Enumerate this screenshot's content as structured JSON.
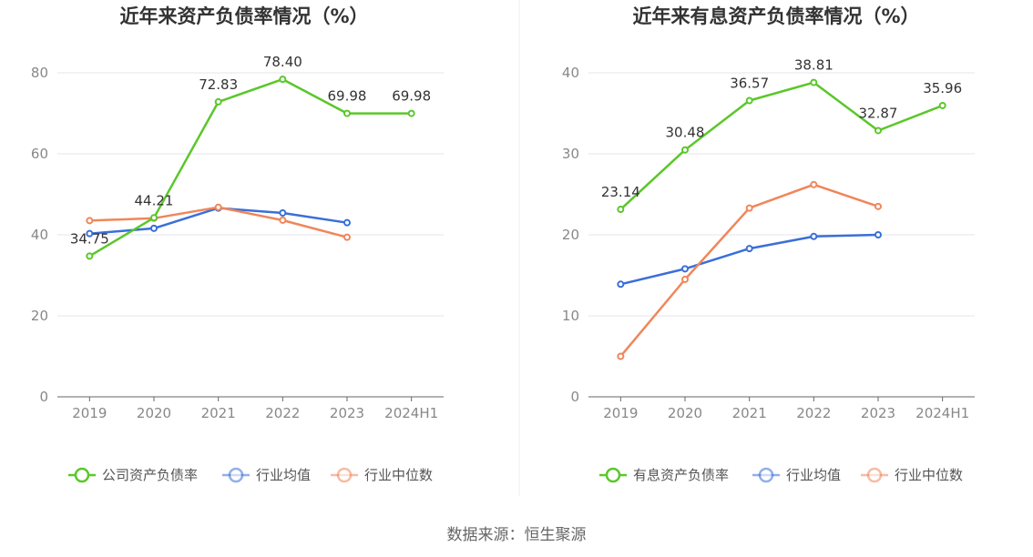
{
  "source_text": "数据来源：恒生聚源",
  "chart_data": [
    {
      "type": "line",
      "title": "近年来资产负债率情况（%）",
      "xlabel": "",
      "ylabel": "",
      "categories": [
        "2019",
        "2020",
        "2021",
        "2022",
        "2023",
        "2024H1"
      ],
      "ylim": [
        0,
        80
      ],
      "yticks": [
        0,
        20,
        40,
        60,
        80
      ],
      "grid": true,
      "legend_position": "bottom",
      "series": [
        {
          "name": "公司资产负债率",
          "color": "#5ac72a",
          "labeled": true,
          "values": [
            34.75,
            44.21,
            72.83,
            78.4,
            69.98,
            69.98
          ],
          "labels": [
            "34.75",
            "44.21",
            "72.83",
            "78.40",
            "69.98",
            "69.98"
          ]
        },
        {
          "name": "行业均值",
          "color": "#3a6fd8",
          "labeled": false,
          "values": [
            40.3,
            41.6,
            46.6,
            45.4,
            43.0,
            null
          ]
        },
        {
          "name": "行业中位数",
          "color": "#f0865a",
          "labeled": false,
          "values": [
            43.5,
            44.1,
            46.8,
            43.6,
            39.4,
            null
          ]
        }
      ]
    },
    {
      "type": "line",
      "title": "近年来有息资产负债率情况（%）",
      "xlabel": "",
      "ylabel": "",
      "categories": [
        "2019",
        "2020",
        "2021",
        "2022",
        "2023",
        "2024H1"
      ],
      "ylim": [
        0,
        40
      ],
      "yticks": [
        0,
        10,
        20,
        30,
        40
      ],
      "grid": true,
      "legend_position": "bottom",
      "series": [
        {
          "name": "有息资产负债率",
          "color": "#5ac72a",
          "labeled": true,
          "values": [
            23.14,
            30.48,
            36.57,
            38.81,
            32.87,
            35.96
          ],
          "labels": [
            "23.14",
            "30.48",
            "36.57",
            "38.81",
            "32.87",
            "35.96"
          ]
        },
        {
          "name": "行业均值",
          "color": "#3a6fd8",
          "labeled": false,
          "values": [
            13.9,
            15.8,
            18.3,
            19.8,
            20.0,
            null
          ]
        },
        {
          "name": "行业中位数",
          "color": "#f0865a",
          "labeled": false,
          "values": [
            5.0,
            14.5,
            23.3,
            26.2,
            23.5,
            null
          ]
        }
      ]
    }
  ]
}
